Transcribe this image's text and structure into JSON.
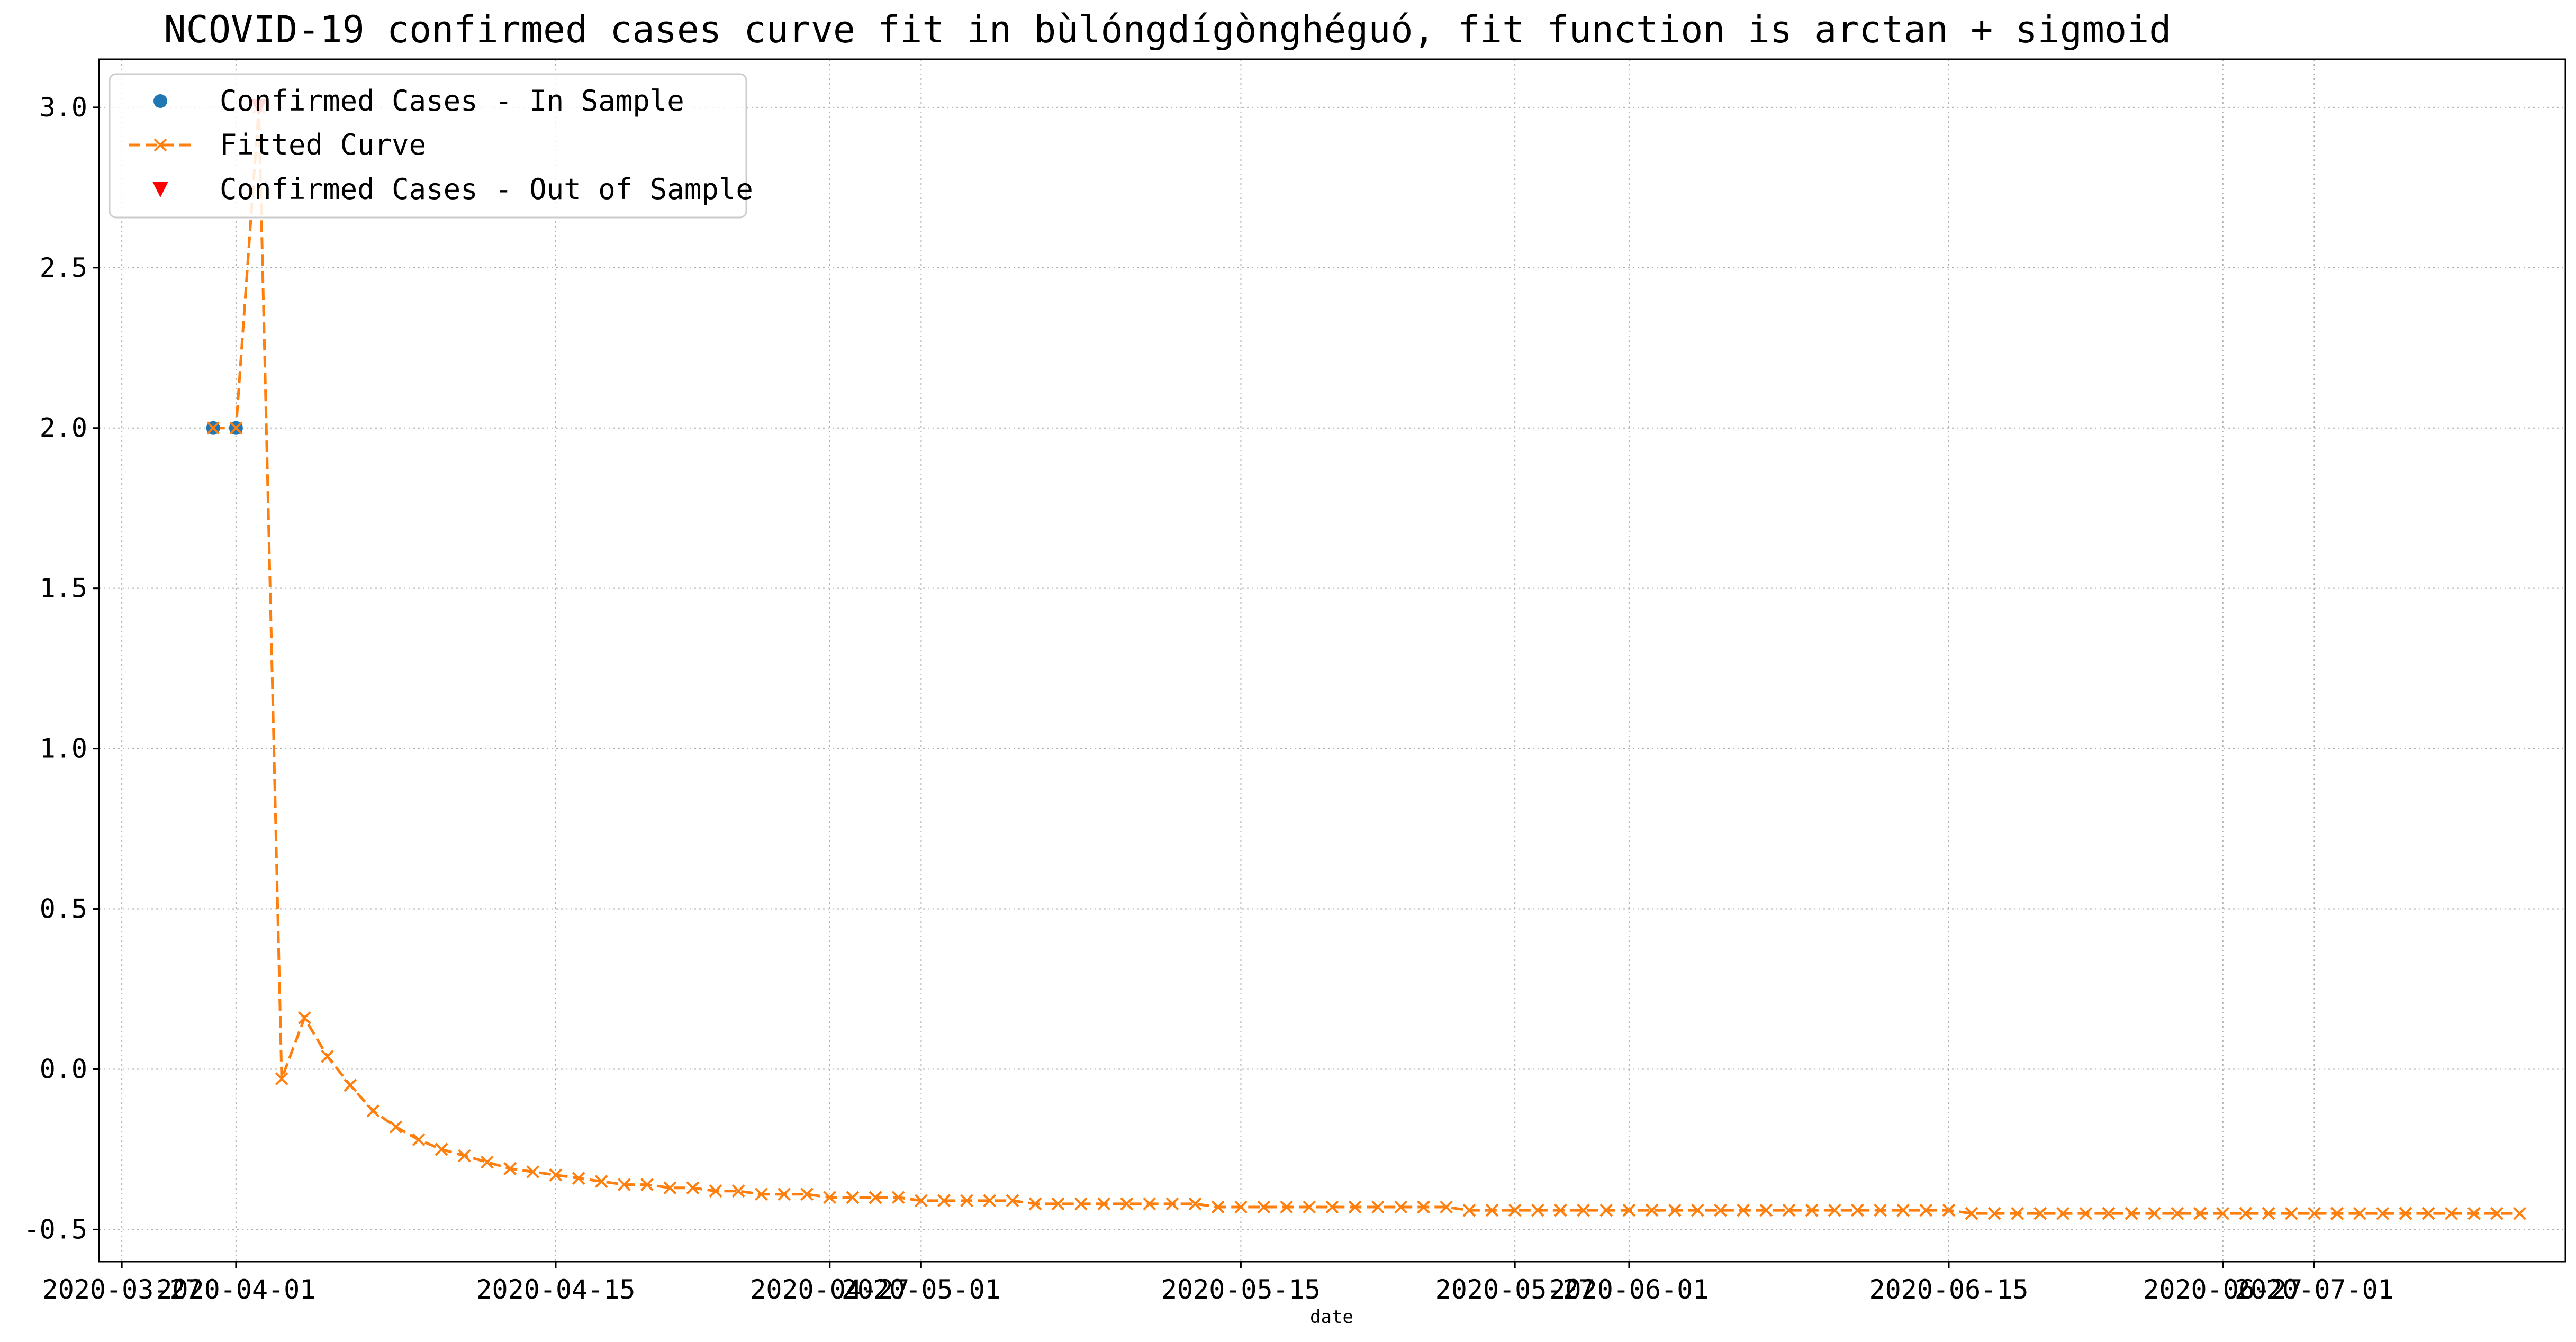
{
  "chart_data": {
    "type": "line",
    "title": "NCOVID-19 confirmed cases curve fit in bùlóngdígònghéguó, fit function is arctan + sigmoid",
    "xlabel": "date",
    "ylabel": "",
    "xlim": [
      "2020-03-26",
      "2020-07-12"
    ],
    "ylim": [
      -0.6,
      3.15
    ],
    "grid": true,
    "grid_style": "dotted",
    "legend_position": "top-left",
    "x_ticks": [
      "2020-03-27",
      "2020-04-01",
      "2020-04-15",
      "2020-04-27",
      "2020-05-01",
      "2020-05-15",
      "2020-05-27",
      "2020-06-01",
      "2020-06-15",
      "2020-06-27",
      "2020-07-01"
    ],
    "x_tick_labels": [
      "2020-03-27",
      "2020-04-01",
      "2020-04-15",
      "2020-04-27",
      "2020-05-01",
      "2020-05-15",
      "2020-05-27",
      "2020-06-01",
      "2020-06-15",
      "2020-06-27",
      "2020-07-01"
    ],
    "y_ticks": [
      -0.5,
      0.0,
      0.5,
      1.0,
      1.5,
      2.0,
      2.5,
      3.0
    ],
    "y_tick_labels": [
      "-0.5",
      "0.0",
      "0.5",
      "1.0",
      "1.5",
      "2.0",
      "2.5",
      "3.0"
    ],
    "series": [
      {
        "name": "Confirmed Cases - In Sample",
        "marker": "circle",
        "color": "#1f77b4",
        "x": [
          "2020-03-31",
          "2020-04-01"
        ],
        "y": [
          2,
          2
        ]
      },
      {
        "name": "Fitted Curve",
        "marker": "x",
        "line_style": "dashed",
        "color": "#ff7f0e",
        "x": [
          "2020-03-31",
          "2020-04-01",
          "2020-04-02",
          "2020-04-03",
          "2020-04-04",
          "2020-04-05",
          "2020-04-06",
          "2020-04-07",
          "2020-04-08",
          "2020-04-09",
          "2020-04-10",
          "2020-04-11",
          "2020-04-12",
          "2020-04-13",
          "2020-04-14",
          "2020-04-15",
          "2020-04-16",
          "2020-04-17",
          "2020-04-18",
          "2020-04-19",
          "2020-04-20",
          "2020-04-21",
          "2020-04-22",
          "2020-04-23",
          "2020-04-24",
          "2020-04-25",
          "2020-04-26",
          "2020-04-27",
          "2020-04-28",
          "2020-04-29",
          "2020-04-30",
          "2020-05-01",
          "2020-05-02",
          "2020-05-03",
          "2020-05-04",
          "2020-05-05",
          "2020-05-06",
          "2020-05-07",
          "2020-05-08",
          "2020-05-09",
          "2020-05-10",
          "2020-05-11",
          "2020-05-12",
          "2020-05-13",
          "2020-05-14",
          "2020-05-15",
          "2020-05-16",
          "2020-05-17",
          "2020-05-18",
          "2020-05-19",
          "2020-05-20",
          "2020-05-21",
          "2020-05-22",
          "2020-05-23",
          "2020-05-24",
          "2020-05-25",
          "2020-05-26",
          "2020-05-27",
          "2020-05-28",
          "2020-05-29",
          "2020-05-30",
          "2020-05-31",
          "2020-06-01",
          "2020-06-02",
          "2020-06-03",
          "2020-06-04",
          "2020-06-05",
          "2020-06-06",
          "2020-06-07",
          "2020-06-08",
          "2020-06-09",
          "2020-06-10",
          "2020-06-11",
          "2020-06-12",
          "2020-06-13",
          "2020-06-14",
          "2020-06-15",
          "2020-06-16",
          "2020-06-17",
          "2020-06-18",
          "2020-06-19",
          "2020-06-20",
          "2020-06-21",
          "2020-06-22",
          "2020-06-23",
          "2020-06-24",
          "2020-06-25",
          "2020-06-26",
          "2020-06-27",
          "2020-06-28",
          "2020-06-29",
          "2020-06-30",
          "2020-07-01",
          "2020-07-02",
          "2020-07-03",
          "2020-07-04",
          "2020-07-05",
          "2020-07-06",
          "2020-07-07",
          "2020-07-08",
          "2020-07-09",
          "2020-07-10"
        ],
        "y": [
          2.0,
          2.0,
          3.0,
          -0.03,
          0.16,
          0.04,
          -0.05,
          -0.13,
          -0.18,
          -0.22,
          -0.25,
          -0.27,
          -0.29,
          -0.31,
          -0.32,
          -0.33,
          -0.34,
          -0.35,
          -0.36,
          -0.36,
          -0.37,
          -0.37,
          -0.38,
          -0.38,
          -0.39,
          -0.39,
          -0.39,
          -0.4,
          -0.4,
          -0.4,
          -0.4,
          -0.41,
          -0.41,
          -0.41,
          -0.41,
          -0.41,
          -0.42,
          -0.42,
          -0.42,
          -0.42,
          -0.42,
          -0.42,
          -0.42,
          -0.42,
          -0.43,
          -0.43,
          -0.43,
          -0.43,
          -0.43,
          -0.43,
          -0.43,
          -0.43,
          -0.43,
          -0.43,
          -0.43,
          -0.44,
          -0.44,
          -0.44,
          -0.44,
          -0.44,
          -0.44,
          -0.44,
          -0.44,
          -0.44,
          -0.44,
          -0.44,
          -0.44,
          -0.44,
          -0.44,
          -0.44,
          -0.44,
          -0.44,
          -0.44,
          -0.44,
          -0.44,
          -0.44,
          -0.44,
          -0.45,
          -0.45,
          -0.45,
          -0.45,
          -0.45,
          -0.45,
          -0.45,
          -0.45,
          -0.45,
          -0.45,
          -0.45,
          -0.45,
          -0.45,
          -0.45,
          -0.45,
          -0.45,
          -0.45,
          -0.45,
          -0.45,
          -0.45,
          -0.45,
          -0.45,
          -0.45,
          -0.45,
          -0.45
        ]
      },
      {
        "name": "Confirmed Cases - Out of Sample",
        "marker": "triangle-down",
        "color": "#ff0000",
        "x": [
          "2020-04-02"
        ],
        "y": [
          3
        ]
      }
    ]
  }
}
